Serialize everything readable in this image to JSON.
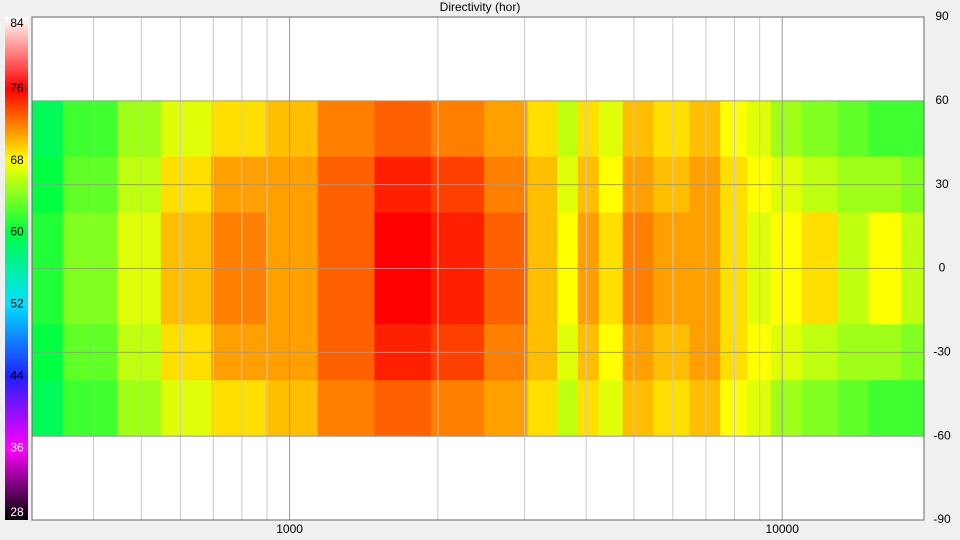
{
  "chart_data": {
    "type": "heatmap",
    "title": "Directivity (hor)",
    "x": [
      300,
      400,
      500,
      600,
      800,
      1000,
      1300,
      1700,
      2200,
      2800,
      3300,
      3700,
      4000,
      4500,
      5000,
      6000,
      7000,
      8000,
      9000,
      10000,
      12000,
      14000,
      16000,
      19000
    ],
    "y": [
      50,
      30,
      10,
      -10,
      -30,
      -50
    ],
    "z": [
      [
        59,
        62,
        65,
        67,
        69,
        70,
        72,
        73,
        72,
        71,
        69,
        66,
        69,
        67,
        70,
        69,
        70,
        68,
        67,
        65,
        64,
        63,
        62,
        62
      ],
      [
        60,
        63,
        66,
        69,
        71,
        71,
        73,
        75,
        74,
        72,
        70,
        67,
        70,
        68,
        71,
        70,
        71,
        69,
        68,
        67,
        66,
        65,
        65,
        64
      ],
      [
        61,
        64,
        67,
        70,
        72,
        71,
        73,
        76,
        75,
        73,
        70,
        68,
        71,
        69,
        72,
        71,
        71,
        69,
        67,
        68,
        69,
        66,
        68,
        66
      ],
      [
        61,
        64,
        67,
        70,
        72,
        71,
        73,
        76,
        75,
        73,
        70,
        68,
        71,
        69,
        72,
        71,
        71,
        69,
        67,
        68,
        69,
        66,
        68,
        66
      ],
      [
        60,
        63,
        66,
        69,
        71,
        71,
        73,
        75,
        74,
        72,
        70,
        67,
        70,
        68,
        71,
        70,
        71,
        69,
        68,
        67,
        66,
        65,
        65,
        64
      ],
      [
        59,
        62,
        65,
        67,
        69,
        70,
        72,
        73,
        72,
        71,
        69,
        66,
        69,
        67,
        70,
        69,
        70,
        68,
        67,
        65,
        64,
        63,
        62,
        62
      ]
    ],
    "xlim": [
      300,
      19400
    ],
    "xscale": "log",
    "xticks": [
      1000,
      10000
    ],
    "xminor": [
      400,
      500,
      600,
      700,
      800,
      900,
      2000,
      3000,
      4000,
      5000,
      6000,
      7000,
      8000,
      9000
    ],
    "ylim": [
      -90,
      90
    ],
    "yticks": [
      90,
      60,
      30,
      0,
      -30,
      -60,
      -90
    ],
    "grid": true,
    "colorbar": {
      "lim": [
        28,
        84
      ],
      "ticks": [
        84,
        76,
        68,
        60,
        52,
        44,
        36,
        28
      ],
      "stops": [
        [
          28,
          "#000000"
        ],
        [
          36,
          "#ff00ff"
        ],
        [
          44,
          "#2020ff"
        ],
        [
          52,
          "#00e0ff"
        ],
        [
          60,
          "#00ff40"
        ],
        [
          68,
          "#ffff00"
        ],
        [
          76,
          "#ff0000"
        ],
        [
          84,
          "#ffffff"
        ]
      ]
    }
  }
}
